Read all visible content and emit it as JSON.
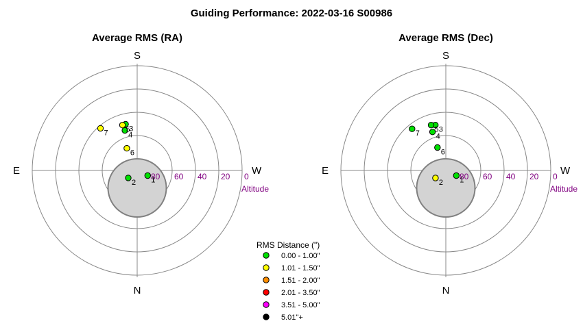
{
  "title": "Guiding Performance: 2022-03-16 S00986",
  "colors": {
    "grid": "#888888",
    "altitude": "#800080",
    "disk_fill": "#d3d3d3",
    "disk_stroke": "#808080"
  },
  "chart_data": [
    {
      "type": "scatter",
      "projection": "polar-altaz",
      "title": "Average RMS (RA)",
      "directions": {
        "top": "S",
        "bottom": "N",
        "left": "E",
        "right": "W"
      },
      "altitude_label": "Altitude",
      "altitude_ticks": [
        "80",
        "60",
        "40",
        "20",
        "0"
      ],
      "altitude_rings": [
        80,
        60,
        40,
        20,
        0
      ],
      "points": [
        {
          "label": "1",
          "alt": 80,
          "az": 296,
          "bin": 0
        },
        {
          "label": "2",
          "alt": 80,
          "az": 50,
          "bin": 0
        },
        {
          "label": "3",
          "alt": 49,
          "az": 166,
          "bin": 0
        },
        {
          "label": "4",
          "alt": 54,
          "az": 163,
          "bin": 0
        },
        {
          "label": "5",
          "alt": 49,
          "az": 162,
          "bin": 1
        },
        {
          "label": "6",
          "alt": 69,
          "az": 155,
          "bin": 1
        },
        {
          "label": "7",
          "alt": 42,
          "az": 139,
          "bin": 1
        }
      ]
    },
    {
      "type": "scatter",
      "projection": "polar-altaz",
      "title": "Average RMS (Dec)",
      "directions": {
        "top": "S",
        "bottom": "N",
        "left": "E",
        "right": "W"
      },
      "altitude_label": "Altitude",
      "altitude_ticks": [
        "80",
        "60",
        "40",
        "20",
        "0"
      ],
      "altitude_rings": [
        80,
        60,
        40,
        20,
        0
      ],
      "points": [
        {
          "label": "1",
          "alt": 80,
          "az": 296,
          "bin": 0
        },
        {
          "label": "2",
          "alt": 79,
          "az": 54,
          "bin": 1
        },
        {
          "label": "3",
          "alt": 50,
          "az": 167,
          "bin": 0
        },
        {
          "label": "4",
          "alt": 55,
          "az": 161,
          "bin": 0
        },
        {
          "label": "5",
          "alt": 49,
          "az": 162,
          "bin": 0
        },
        {
          "label": "6",
          "alt": 69,
          "az": 160,
          "bin": 0
        },
        {
          "label": "7",
          "alt": 44,
          "az": 141,
          "bin": 0
        }
      ]
    }
  ],
  "legend": {
    "title": "RMS Distance (\")",
    "bins": [
      {
        "label": "0.00 - 1.00\"",
        "color": "#00e000"
      },
      {
        "label": "1.01 - 1.50\"",
        "color": "#ffff00"
      },
      {
        "label": "1.51 - 2.00\"",
        "color": "#ff8c00"
      },
      {
        "label": "2.01 - 3.50\"",
        "color": "#ff0000"
      },
      {
        "label": "3.51 - 5.00\"",
        "color": "#ff00ff"
      },
      {
        "label": "5.01\"+",
        "color": "#000000"
      }
    ]
  }
}
